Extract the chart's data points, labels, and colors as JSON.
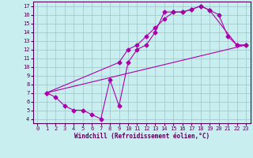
{
  "title": "",
  "xlabel": "Windchill (Refroidissement éolien,°C)",
  "xlim": [
    -0.5,
    23.5
  ],
  "ylim": [
    3.5,
    17.5
  ],
  "xticks": [
    0,
    1,
    2,
    3,
    4,
    5,
    6,
    7,
    8,
    9,
    10,
    11,
    12,
    13,
    14,
    15,
    16,
    17,
    18,
    19,
    20,
    21,
    22,
    23
  ],
  "yticks": [
    4,
    5,
    6,
    7,
    8,
    9,
    10,
    11,
    12,
    13,
    14,
    15,
    16,
    17
  ],
  "bg_color": "#c8eef0",
  "line_color": "#aa00aa",
  "grid_color": "#9ec4c8",
  "line1_x": [
    1,
    2,
    3,
    4,
    5,
    6,
    7,
    8,
    9,
    10,
    11,
    12,
    13,
    14,
    15,
    16,
    17,
    18,
    19,
    20,
    21,
    22,
    23
  ],
  "line1_y": [
    7.0,
    6.5,
    5.5,
    5.0,
    5.0,
    4.5,
    4.0,
    8.5,
    5.5,
    10.5,
    12.0,
    12.5,
    14.0,
    16.3,
    16.3,
    16.3,
    16.6,
    17.0,
    16.5,
    16.0,
    13.5,
    12.5,
    12.5
  ],
  "line2_x": [
    1,
    9,
    10,
    11,
    12,
    13,
    14,
    15,
    16,
    17,
    18,
    19,
    22,
    23
  ],
  "line2_y": [
    7.0,
    10.5,
    12.0,
    12.5,
    13.5,
    14.5,
    15.5,
    16.3,
    16.3,
    16.6,
    17.0,
    16.5,
    12.5,
    12.5
  ],
  "line3_x": [
    1,
    23
  ],
  "line3_y": [
    7.0,
    12.5
  ]
}
